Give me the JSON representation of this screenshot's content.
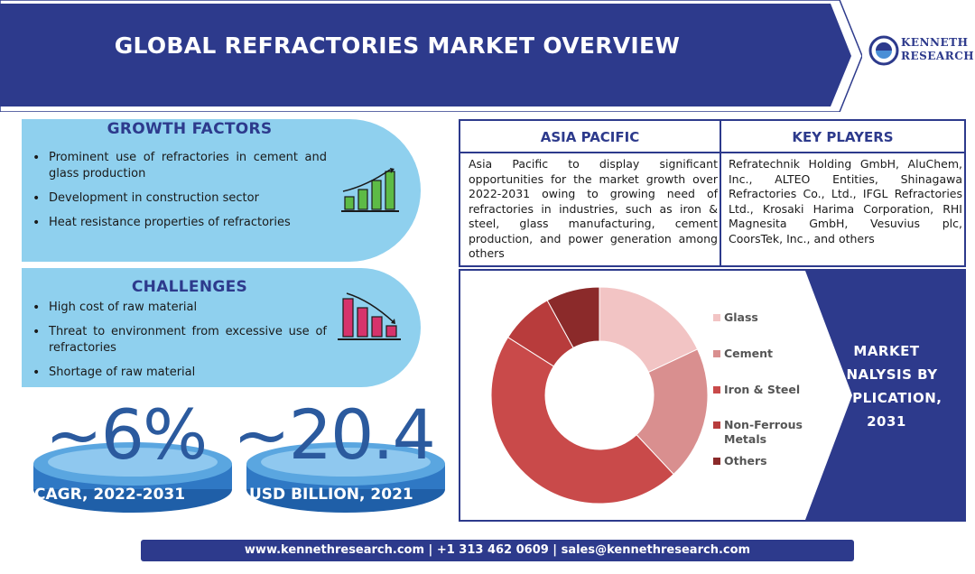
{
  "header": {
    "title": "GLOBAL REFRACTORIES MARKET OVERVIEW"
  },
  "logo": {
    "line1": "KENNETH",
    "line2": "RESEARCH",
    "icon": "kenneth-research-logo-icon"
  },
  "growth_factors": {
    "title": "GROWTH FACTORS",
    "items": [
      "Prominent use of refractories in cement and glass production",
      "Development in construction sector",
      "Heat resistance properties of refractories"
    ],
    "icon": "bar-chart-up-icon",
    "color": "#5dbb46"
  },
  "challenges": {
    "title": "CHALLENGES",
    "items": [
      "High cost of raw material",
      "Threat to environment from excessive use of refractories",
      "Shortage of raw material"
    ],
    "icon": "bar-chart-down-icon",
    "color": "#d6336c"
  },
  "stats": {
    "cagr_value": "~6%",
    "cagr_label": "CAGR, 2022-2031",
    "market_value": "~20.4",
    "market_label": "USD BILLION, 2021"
  },
  "asia_pacific": {
    "title": "ASIA PACIFIC",
    "text": "Asia Pacific to display significant opportunities for the market growth over 2022-2031 owing to growing need of refractories in industries, such as iron & steel, glass manufacturing, cement production, and power generation among others"
  },
  "key_players": {
    "title": "KEY PLAYERS",
    "text": "Refratechnik Holding GmbH, AluChem, Inc., ALTEO Entities, Shinagawa Refractories Co., Ltd., IFGL Refractories Ltd., Krosaki Harima Corporation, RHI Magnesita GmbH, Vesuvius plc, CoorsTek, Inc., and others"
  },
  "market_analysis": {
    "title_line1": "MARKET",
    "title_line2": "ANALYSIS BY",
    "title_line3": "APPLICATION,",
    "title_line4": "2031"
  },
  "chart_data": {
    "type": "pie",
    "donut": true,
    "categories": [
      "Glass",
      "Cement",
      "Iron & Steel",
      "Non-Ferrous Metals",
      "Others"
    ],
    "values": [
      18,
      20,
      46,
      8,
      8
    ],
    "colors": [
      "#f2c4c4",
      "#d98f8f",
      "#c94a4a",
      "#b83c3c",
      "#8b2a2a"
    ],
    "legend_position": "right",
    "legend": [
      {
        "line1": "Glass",
        "line2": ""
      },
      {
        "line1": "Cement",
        "line2": ""
      },
      {
        "line1": "Iron & Steel",
        "line2": ""
      },
      {
        "line1": "Non-Ferrous",
        "line2": "Metals"
      },
      {
        "line1": "Others",
        "line2": ""
      }
    ]
  },
  "footer": {
    "text": "www.kennethresearch.com | +1 313 462 0609 | sales@kennethresearch.com"
  },
  "colors": {
    "brand": "#2d3a8c",
    "panel": "#8fd0ee",
    "stat": "#2b5a9e"
  }
}
